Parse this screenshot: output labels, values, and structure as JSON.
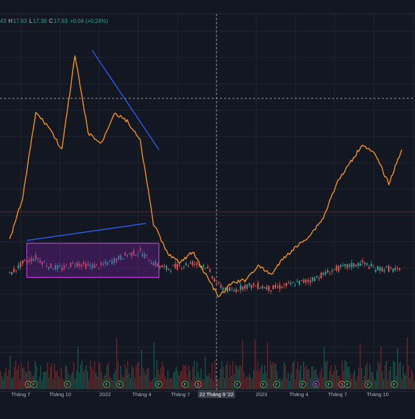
{
  "legend": {
    "open_tail": "43",
    "high_label": "H",
    "high": "17.63",
    "low_label": "L",
    "low": "17.30",
    "close_label": "C",
    "close": "17.63",
    "change": "+0.04 (+0.24%)"
  },
  "colors": {
    "background": "#131722",
    "grid": "#1f2431",
    "main_line": "#f7931a",
    "trend_line": "#2962ff",
    "box_fill": "#7b1fa2",
    "box_border": "#e040fb",
    "candle_up": "#26a69a",
    "candle_down": "#ef5350",
    "events_green": "#4caf50",
    "events_orange": "#ff7043",
    "events_purple": "#ab47bc"
  },
  "crosshair_label": "22 Tháng 9 '22",
  "chart_data": {
    "type": "line",
    "x_tick_labels": [
      "Tháng 7",
      "Tháng 10",
      "2022",
      "Tháng 4",
      "Tháng 7",
      "22 Tháng 9 '22",
      "2023",
      "Tháng 4",
      "Tháng 7",
      "Tháng 10"
    ],
    "series": [
      {
        "style": "line",
        "x": [
          "2021-05",
          "2021-06",
          "2021-07",
          "2021-08",
          "2021-09",
          "2021-10",
          "2021-11",
          "2021-12",
          "2022-01",
          "2022-02",
          "2022-03",
          "2022-04",
          "2022-05",
          "2022-06",
          "2022-07",
          "2022-08",
          "2022-09",
          "2022-10",
          "2022-11",
          "2022-12",
          "2023-01",
          "2023-02",
          "2023-03",
          "2023-04",
          "2023-05",
          "2023-06",
          "2023-07",
          "2023-08",
          "2023-09",
          "2023-10",
          "2023-11"
        ],
        "values": [
          30,
          45,
          75,
          70,
          62,
          95,
          68,
          64,
          75,
          72,
          65,
          36,
          26,
          22,
          26,
          18,
          10,
          15,
          16,
          21,
          18,
          24,
          28,
          32,
          38,
          50,
          57,
          64,
          60,
          50,
          62
        ]
      },
      {
        "style": "candlestick",
        "x": [
          "2021-05",
          "2021-06",
          "2021-07",
          "2021-08",
          "2021-09",
          "2021-10",
          "2021-11",
          "2021-12",
          "2022-01",
          "2022-02",
          "2022-03",
          "2022-04",
          "2022-05",
          "2022-06",
          "2022-07",
          "2022-08",
          "2022-09",
          "2022-10",
          "2022-11",
          "2022-12",
          "2023-01",
          "2023-02",
          "2023-03",
          "2023-04",
          "2023-05",
          "2023-06",
          "2023-07",
          "2023-08",
          "2023-09",
          "2023-10",
          "2023-11"
        ],
        "values": [
          18,
          22,
          24,
          21,
          20,
          22,
          21,
          21,
          23,
          25,
          26,
          22,
          20,
          21,
          22,
          21,
          14,
          12,
          14,
          14,
          13,
          14,
          15,
          16,
          18,
          20,
          21,
          22,
          20,
          20,
          19
        ]
      }
    ],
    "annotations": [
      {
        "type": "trend_line",
        "from": [
          "2021-11",
          97
        ],
        "to": [
          "2022-04",
          62
        ]
      },
      {
        "type": "trend_line",
        "from": [
          "2021-06",
          30
        ],
        "to": [
          "2022-03",
          36
        ]
      },
      {
        "type": "rectangle",
        "from": [
          "2021-06",
          29
        ],
        "to": [
          "2022-04",
          17
        ]
      }
    ],
    "volume": "bars shown below price pane",
    "grid": true
  },
  "event_markers": [
    {
      "x": "2021-06",
      "text": "S",
      "kind": "orange"
    },
    {
      "x": "2021-06",
      "text": "F",
      "kind": "green"
    },
    {
      "x": "2021-09",
      "text": "F",
      "kind": "green"
    },
    {
      "x": "2021-12",
      "text": "F",
      "kind": "green"
    },
    {
      "x": "2022-01",
      "text": "F",
      "kind": "green"
    },
    {
      "x": "2022-04",
      "text": "F",
      "kind": "green"
    },
    {
      "x": "2022-06",
      "text": "F",
      "kind": "green"
    },
    {
      "x": "2022-07",
      "text": "S",
      "kind": "orange"
    },
    {
      "x": "2022-10",
      "text": "F",
      "kind": "green"
    },
    {
      "x": "2022-12",
      "text": "F",
      "kind": "green"
    },
    {
      "x": "2023-01",
      "text": "F",
      "kind": "green"
    },
    {
      "x": "2023-03",
      "text": "F",
      "kind": "green"
    },
    {
      "x": "2023-04",
      "text": "D",
      "kind": "purple"
    },
    {
      "x": "2023-05",
      "text": "F",
      "kind": "green"
    },
    {
      "x": "2023-06",
      "text": "S",
      "kind": "orange"
    },
    {
      "x": "2023-06",
      "text": "F",
      "kind": "green"
    },
    {
      "x": "2023-08",
      "text": "F",
      "kind": "green"
    },
    {
      "x": "2023-10",
      "text": "F",
      "kind": "green"
    }
  ]
}
